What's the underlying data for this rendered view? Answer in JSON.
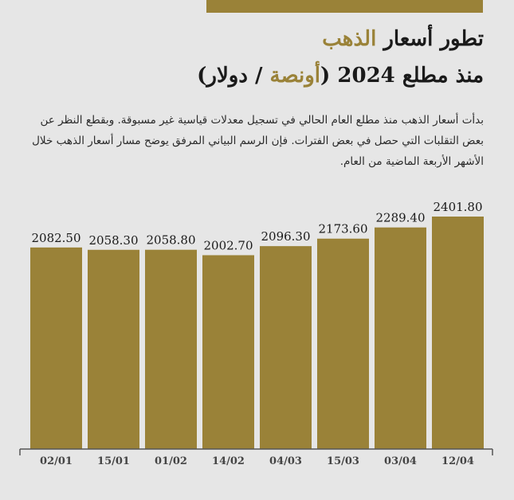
{
  "colors": {
    "accent": "#9a8238",
    "background": "#e6e6e6",
    "text": "#1a1a1a",
    "axis": "#555555"
  },
  "title": {
    "line1_prefix": "تطور أسعار ",
    "line1_highlight": "الذهب",
    "line2_prefix": "منذ مطلع 2024 (",
    "line2_highlight": "أونصة",
    "line2_suffix": " / دولار)"
  },
  "description": "بدأت أسعار الذهب منذ مطلع العام الحالي في تسجيل معدلات قياسية غير مسبوقة. وبقطع النظر عن بعض التقلبات التي حصل في بعض الفترات. فإن الرسم البياني المرفق يوضح مسار أسعار الذهب خلال الأشهر الأربعة الماضية من العام.",
  "chart_data": {
    "type": "bar",
    "categories": [
      "02/01",
      "15/01",
      "01/02",
      "14/02",
      "04/03",
      "15/03",
      "03/04",
      "12/04"
    ],
    "values": [
      2082.5,
      2058.3,
      2058.8,
      2002.7,
      2096.3,
      2173.6,
      2289.4,
      2401.8
    ],
    "value_labels": [
      "2082.50",
      "2058.30",
      "2058.80",
      "2002.70",
      "2096.30",
      "2173.60",
      "2289.40",
      "2401.80"
    ],
    "title": "تطور أسعار الذهب منذ مطلع 2024 (أونصة / دولار)",
    "xlabel": "",
    "ylabel": "",
    "ylim": [
      0,
      2401.8
    ],
    "grid": false,
    "legend": "none"
  }
}
